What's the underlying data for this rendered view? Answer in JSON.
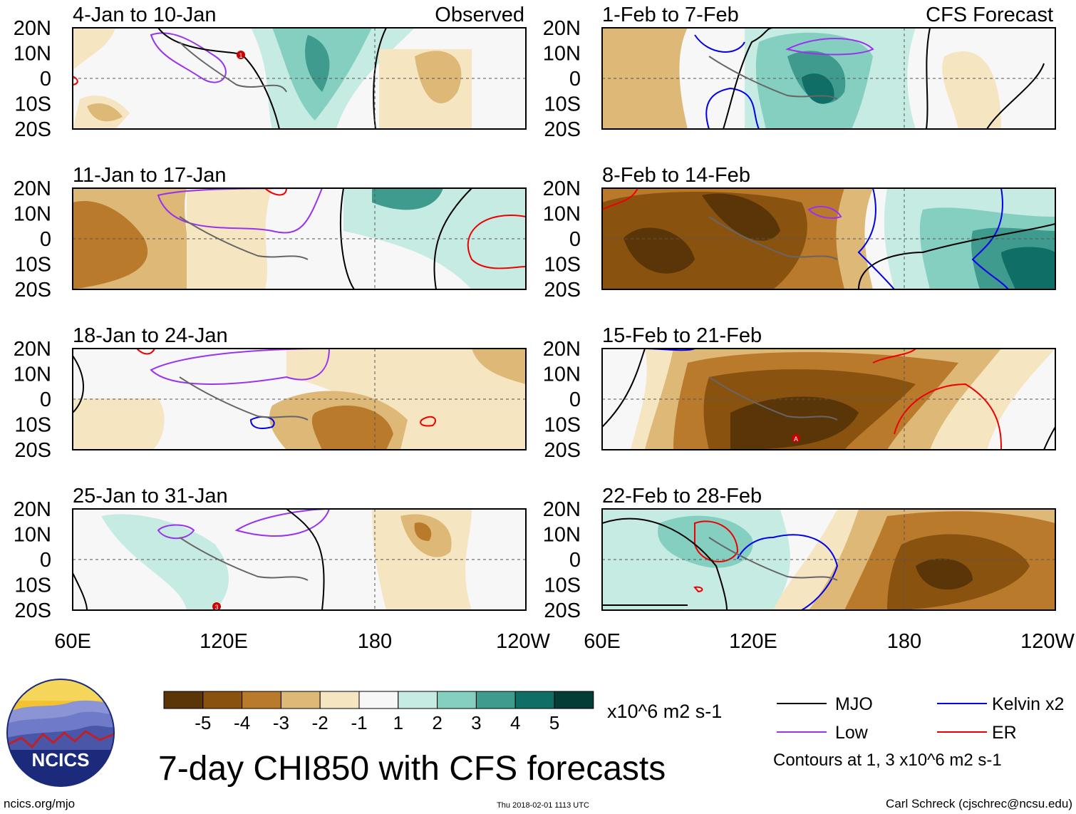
{
  "panels_observed": [
    {
      "period": "4-Jan to 10-Jan",
      "label": "Observed"
    },
    {
      "period": "11-Jan to 17-Jan",
      "label": ""
    },
    {
      "period": "18-Jan to 24-Jan",
      "label": ""
    },
    {
      "period": "25-Jan to 31-Jan",
      "label": ""
    }
  ],
  "panels_forecast": [
    {
      "period": "1-Feb to 7-Feb",
      "label": "CFS Forecast"
    },
    {
      "period": "8-Feb to 14-Feb",
      "label": ""
    },
    {
      "period": "15-Feb to 21-Feb",
      "label": ""
    },
    {
      "period": "22-Feb to 28-Feb",
      "label": ""
    }
  ],
  "lat_labels": [
    "20N",
    "10N",
    "0",
    "10S",
    "20S"
  ],
  "lon_labels": [
    "60E",
    "120E",
    "180",
    "120W"
  ],
  "colorbar": {
    "ticks": [
      "-5",
      "-4",
      "-3",
      "-2",
      "-1",
      "1",
      "2",
      "3",
      "4",
      "5"
    ],
    "colors": [
      "#5a3508",
      "#8a520f",
      "#b97a2c",
      "#ddb877",
      "#f5e5c0",
      "#f7f7f7",
      "#c6ebe2",
      "#84cfc0",
      "#3e9b8e",
      "#0f6e66",
      "#033d36"
    ],
    "units": "x10^6 m2 s-1"
  },
  "legend": {
    "items": [
      {
        "label": "MJO",
        "color": "#000000"
      },
      {
        "label": "Kelvin x2",
        "color": "#0000ee"
      },
      {
        "label": "Low",
        "color": "#9933ee"
      },
      {
        "label": "ER",
        "color": "#ee0000"
      }
    ],
    "note": "Contours at 1, 3 x10^6 m2 s-1"
  },
  "markers": [
    "1",
    "3",
    "A"
  ],
  "title": "7-day CHI850 with CFS forecasts",
  "logo_text": "NCICS",
  "footer": {
    "left": "ncics.org/mjo",
    "center": "Thu 2018-02-01 1113 UTC",
    "right": "Carl Schreck (cjschrec@ncsu.edu)"
  }
}
